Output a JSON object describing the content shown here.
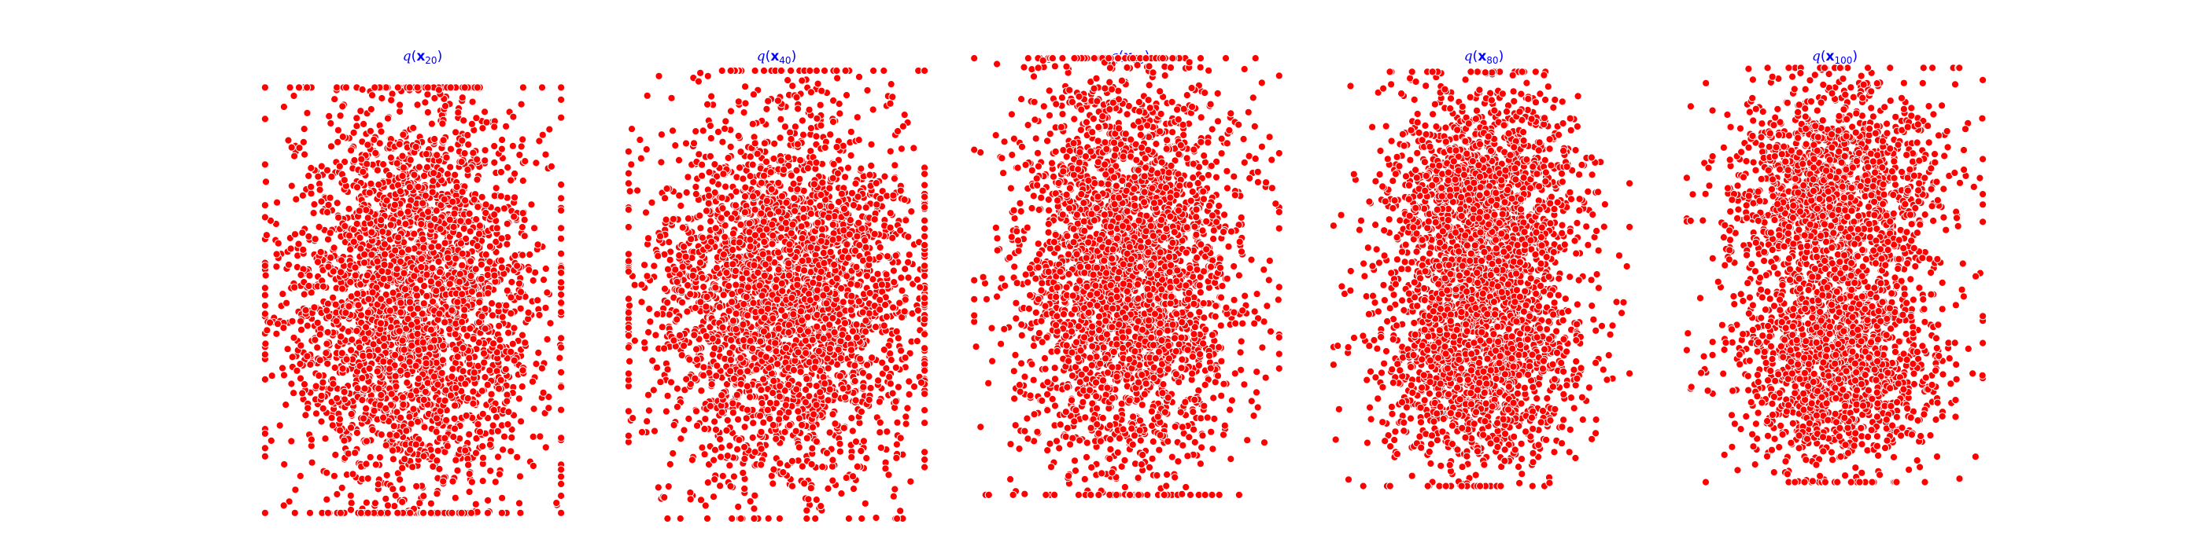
{
  "chart_data": [
    {
      "type": "scatter",
      "title": {
        "func": "q",
        "var": "x",
        "sub": "20"
      },
      "marker_color": "#ff0000",
      "marker_edge_color": "#ffffff",
      "axes_visible": false,
      "grid": false,
      "sample_points": 3000,
      "distribution": {
        "center": [
          0.0,
          0.0
        ],
        "std": [
          0.52,
          0.72
        ],
        "blobs": []
      }
    },
    {
      "type": "scatter",
      "title": {
        "func": "q",
        "var": "x",
        "sub": "40"
      },
      "marker_color": "#ff0000",
      "marker_edge_color": "#ffffff",
      "axes_visible": false,
      "grid": false,
      "sample_points": 3000,
      "distribution": {
        "center": [
          0.05,
          0.0
        ],
        "std": [
          0.55,
          0.62
        ],
        "blobs": []
      }
    },
    {
      "type": "scatter",
      "title": {
        "func": "q",
        "var": "x",
        "sub": "60"
      },
      "marker_color": "#ff0000",
      "marker_edge_color": "#ffffff",
      "axes_visible": false,
      "grid": false,
      "sample_points": 3000,
      "distribution": {
        "center": [
          0.0,
          0.05
        ],
        "std": [
          0.42,
          0.72
        ],
        "blobs": []
      }
    },
    {
      "type": "scatter",
      "title": {
        "func": "q",
        "var": "x",
        "sub": "80"
      },
      "marker_color": "#ff0000",
      "marker_edge_color": "#ffffff",
      "axes_visible": false,
      "grid": false,
      "sample_points": 3000,
      "distribution": {
        "center": [
          0.0,
          0.0
        ],
        "std": [
          0.4,
          0.78
        ],
        "blobs": [
          {
            "center": [
              0.0,
              0.55
            ],
            "std": [
              0.38,
              0.42
            ],
            "weight": 0.5
          },
          {
            "center": [
              0.0,
              -0.55
            ],
            "std": [
              0.38,
              0.42
            ],
            "weight": 0.5
          }
        ]
      }
    },
    {
      "type": "scatter",
      "title": {
        "func": "q",
        "var": "x",
        "sub": "100"
      },
      "marker_color": "#ff0000",
      "marker_edge_color": "#ffffff",
      "axes_visible": false,
      "grid": false,
      "sample_points": 3000,
      "distribution": {
        "center": [
          0.0,
          0.0
        ],
        "std": [
          0.45,
          0.8
        ],
        "blobs": [
          {
            "center": [
              0.0,
              0.6
            ],
            "std": [
              0.42,
              0.4
            ],
            "weight": 0.5
          },
          {
            "center": [
              0.0,
              -0.6
            ],
            "std": [
              0.42,
              0.4
            ],
            "weight": 0.5
          }
        ]
      }
    }
  ]
}
